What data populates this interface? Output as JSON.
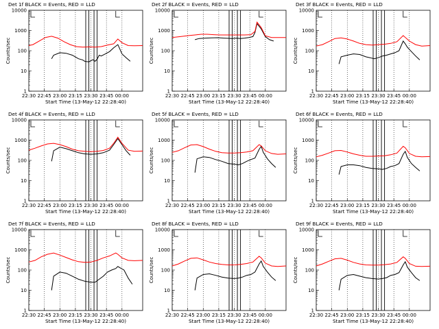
{
  "figure": {
    "time_axis": {
      "xlabel": "Start Time (13-May-12 22:28:40)",
      "x_ticks": [
        "22:30",
        "22:45",
        "23:00",
        "23:15",
        "23:30",
        "23:45",
        "00:00"
      ],
      "x_range_minutes_after_22:30": [
        0,
        110
      ]
    },
    "ylabel": "Counts/sec",
    "y_ticks": [
      "1",
      "10",
      "100",
      "1000",
      "10000"
    ],
    "y_scale": "log",
    "ylim": [
      1,
      10000
    ],
    "colors": {
      "events": "#000000",
      "lld": "#ff0000",
      "axes": "#000000",
      "background": "#ffffff"
    },
    "legend_note": "BLACK = Events, RED = LLD"
  },
  "chart_data": [
    {
      "type": "line",
      "title": "Det 1f BLACK = Events, RED = LLD",
      "xlabel": "Start Time (13-May-12 22:28:40)",
      "ylabel": "Counts/sec",
      "y_scale": "log",
      "ylim": [
        1,
        10000
      ],
      "series": [
        {
          "name": "Events",
          "color": "#000000",
          "x": [
            22,
            24,
            30,
            36,
            42,
            48,
            52,
            54,
            58,
            60,
            62,
            64,
            66,
            68,
            70,
            74,
            78,
            82,
            86,
            88,
            90,
            94,
            98
          ],
          "y": [
            40,
            60,
            80,
            75,
            60,
            40,
            35,
            30,
            28,
            32,
            36,
            30,
            38,
            60,
            55,
            70,
            90,
            140,
            200,
            120,
            70,
            45,
            30
          ]
        },
        {
          "name": "LLD",
          "color": "#ff0000",
          "x": [
            0,
            4,
            10,
            16,
            22,
            28,
            34,
            40,
            46,
            52,
            58,
            64,
            70,
            76,
            82,
            86,
            90,
            96,
            102,
            110
          ],
          "y": [
            180,
            200,
            300,
            450,
            520,
            420,
            280,
            200,
            160,
            150,
            155,
            150,
            160,
            190,
            220,
            380,
            250,
            180,
            175,
            180
          ]
        }
      ]
    },
    {
      "type": "line",
      "title": "Det 2f BLACK = Events, RED = LLD",
      "xlabel": "Start Time (13-May-12 22:28:40)",
      "ylabel": "Counts/sec",
      "y_scale": "log",
      "ylim": [
        1,
        10000
      ],
      "series": [
        {
          "name": "Events",
          "color": "#000000",
          "x": [
            22,
            26,
            32,
            38,
            44,
            50,
            54,
            58,
            62,
            66,
            70,
            74,
            78,
            80,
            82,
            86,
            90,
            94,
            98
          ],
          "y": [
            350,
            400,
            420,
            430,
            440,
            420,
            410,
            400,
            420,
            400,
            420,
            450,
            500,
            800,
            2200,
            1200,
            500,
            350,
            300
          ]
        },
        {
          "name": "LLD",
          "color": "#ff0000",
          "x": [
            0,
            8,
            16,
            22,
            28,
            34,
            40,
            46,
            52,
            58,
            64,
            70,
            76,
            80,
            82,
            86,
            90,
            96,
            102,
            110
          ],
          "y": [
            450,
            500,
            560,
            600,
            650,
            650,
            620,
            600,
            600,
            600,
            600,
            600,
            620,
            900,
            2600,
            1400,
            550,
            450,
            450,
            450
          ]
        }
      ]
    },
    {
      "type": "line",
      "title": "Det 3f BLACK = Events, RED = LLD",
      "xlabel": "Start Time (13-May-12 22:28:40)",
      "ylabel": "Counts/sec",
      "y_scale": "log",
      "ylim": [
        1,
        10000
      ],
      "series": [
        {
          "name": "Events",
          "color": "#000000",
          "x": [
            22,
            24,
            30,
            36,
            42,
            48,
            52,
            56,
            60,
            64,
            68,
            72,
            76,
            80,
            84,
            86,
            88,
            92,
            96,
            100
          ],
          "y": [
            22,
            50,
            60,
            70,
            65,
            50,
            45,
            40,
            45,
            55,
            60,
            70,
            80,
            100,
            300,
            220,
            150,
            90,
            55,
            35
          ]
        },
        {
          "name": "LLD",
          "color": "#ff0000",
          "x": [
            0,
            6,
            12,
            18,
            24,
            30,
            36,
            42,
            48,
            54,
            60,
            66,
            72,
            78,
            84,
            90,
            96,
            102,
            110
          ],
          "y": [
            170,
            200,
            280,
            400,
            430,
            380,
            300,
            230,
            200,
            190,
            200,
            210,
            230,
            280,
            560,
            300,
            200,
            170,
            180
          ]
        }
      ]
    },
    {
      "type": "line",
      "title": "Det 4f BLACK = Events, RED = LLD",
      "xlabel": "Start Time (13-May-12 22:28:40)",
      "ylabel": "Counts/sec",
      "y_scale": "log",
      "ylim": [
        1,
        10000
      ],
      "series": [
        {
          "name": "Events",
          "color": "#000000",
          "x": [
            22,
            24,
            30,
            36,
            42,
            48,
            54,
            60,
            66,
            72,
            78,
            82,
            86,
            90,
            94,
            98
          ],
          "y": [
            90,
            300,
            450,
            380,
            300,
            240,
            210,
            200,
            210,
            240,
            320,
            600,
            1200,
            600,
            300,
            180
          ]
        },
        {
          "name": "LLD",
          "color": "#ff0000",
          "x": [
            0,
            6,
            12,
            18,
            24,
            30,
            36,
            42,
            48,
            54,
            60,
            66,
            72,
            78,
            82,
            86,
            90,
            96,
            102,
            110
          ],
          "y": [
            320,
            400,
            520,
            650,
            700,
            600,
            480,
            360,
            300,
            280,
            270,
            280,
            310,
            400,
            700,
            1400,
            700,
            320,
            280,
            290
          ]
        }
      ]
    },
    {
      "type": "line",
      "title": "Det 5f BLACK = Events, RED = LLD",
      "xlabel": "Start Time (13-May-12 22:28:40)",
      "ylabel": "Counts/sec",
      "y_scale": "log",
      "ylim": [
        1,
        10000
      ],
      "series": [
        {
          "name": "Events",
          "color": "#000000",
          "x": [
            22,
            24,
            30,
            36,
            42,
            48,
            54,
            60,
            64,
            68,
            72,
            76,
            80,
            84,
            86,
            88,
            92,
            96,
            100
          ],
          "y": [
            25,
            120,
            150,
            140,
            110,
            90,
            70,
            65,
            60,
            70,
            90,
            110,
            130,
            350,
            500,
            250,
            120,
            70,
            45
          ]
        },
        {
          "name": "LLD",
          "color": "#ff0000",
          "x": [
            0,
            6,
            12,
            18,
            24,
            30,
            36,
            42,
            48,
            54,
            60,
            66,
            72,
            78,
            84,
            86,
            90,
            96,
            102,
            110
          ],
          "y": [
            250,
            300,
            420,
            580,
            600,
            480,
            360,
            280,
            240,
            230,
            230,
            240,
            260,
            300,
            600,
            520,
            300,
            220,
            200,
            210
          ]
        }
      ]
    },
    {
      "type": "line",
      "title": "Det 6f BLACK = Events, RED = LLD",
      "xlabel": "Start Time (13-May-12 22:28:40)",
      "ylabel": "Counts/sec",
      "y_scale": "log",
      "ylim": [
        1,
        10000
      ],
      "series": [
        {
          "name": "Events",
          "color": "#000000",
          "x": [
            22,
            24,
            30,
            36,
            42,
            48,
            54,
            60,
            64,
            68,
            72,
            76,
            80,
            84,
            86,
            88,
            92,
            96,
            100
          ],
          "y": [
            20,
            50,
            60,
            60,
            55,
            45,
            40,
            38,
            36,
            40,
            50,
            55,
            70,
            200,
            280,
            140,
            70,
            45,
            30
          ]
        },
        {
          "name": "LLD",
          "color": "#ff0000",
          "x": [
            0,
            6,
            12,
            18,
            24,
            30,
            36,
            42,
            48,
            54,
            60,
            66,
            72,
            78,
            84,
            86,
            90,
            96,
            102,
            110
          ],
          "y": [
            150,
            180,
            230,
            300,
            310,
            260,
            210,
            180,
            160,
            160,
            165,
            170,
            190,
            230,
            500,
            420,
            220,
            160,
            150,
            155
          ]
        }
      ]
    },
    {
      "type": "line",
      "title": "Det 7f BLACK = Events, RED = LLD",
      "xlabel": "Start Time (13-May-12 22:28:40)",
      "ylabel": "Counts/sec",
      "y_scale": "log",
      "ylim": [
        1,
        10000
      ],
      "series": [
        {
          "name": "Events",
          "color": "#000000",
          "x": [
            22,
            24,
            30,
            36,
            42,
            48,
            54,
            60,
            64,
            68,
            72,
            76,
            80,
            84,
            86,
            88,
            92,
            96,
            100
          ],
          "y": [
            10,
            50,
            80,
            70,
            50,
            35,
            28,
            25,
            25,
            35,
            50,
            80,
            100,
            120,
            150,
            130,
            100,
            40,
            20
          ]
        },
        {
          "name": "LLD",
          "color": "#ff0000",
          "x": [
            0,
            6,
            12,
            18,
            24,
            30,
            36,
            42,
            48,
            54,
            60,
            66,
            72,
            78,
            84,
            86,
            90,
            96,
            102,
            110
          ],
          "y": [
            250,
            300,
            450,
            600,
            700,
            550,
            420,
            320,
            260,
            240,
            250,
            300,
            400,
            500,
            700,
            600,
            400,
            300,
            290,
            300
          ]
        }
      ]
    },
    {
      "type": "line",
      "title": "Det 8f BLACK = Events, RED = LLD",
      "xlabel": "Start Time (13-May-12 22:28:40)",
      "ylabel": "Counts/sec",
      "y_scale": "log",
      "ylim": [
        1,
        10000
      ],
      "series": [
        {
          "name": "Events",
          "color": "#000000",
          "x": [
            22,
            24,
            30,
            36,
            42,
            48,
            54,
            60,
            64,
            68,
            72,
            76,
            80,
            84,
            86,
            88,
            92,
            96,
            100
          ],
          "y": [
            10,
            40,
            60,
            65,
            55,
            45,
            40,
            38,
            40,
            45,
            55,
            60,
            80,
            200,
            280,
            150,
            80,
            45,
            30
          ]
        },
        {
          "name": "LLD",
          "color": "#ff0000",
          "x": [
            0,
            6,
            12,
            18,
            24,
            30,
            36,
            42,
            48,
            54,
            60,
            66,
            72,
            78,
            84,
            86,
            90,
            96,
            102,
            110
          ],
          "y": [
            160,
            200,
            280,
            380,
            400,
            320,
            250,
            210,
            190,
            180,
            180,
            190,
            210,
            250,
            480,
            400,
            220,
            160,
            150,
            160
          ]
        }
      ]
    },
    {
      "type": "line",
      "title": "Det 9f BLACK = Events, RED = LLD",
      "xlabel": "Start Time (13-May-12 22:28:40)",
      "ylabel": "Counts/sec",
      "y_scale": "log",
      "ylim": [
        1,
        10000
      ],
      "series": [
        {
          "name": "Events",
          "color": "#000000",
          "x": [
            22,
            24,
            30,
            36,
            42,
            48,
            54,
            60,
            64,
            68,
            72,
            76,
            80,
            84,
            86,
            88,
            92,
            96,
            100
          ],
          "y": [
            10,
            35,
            55,
            60,
            50,
            42,
            38,
            36,
            38,
            42,
            55,
            60,
            75,
            180,
            260,
            140,
            75,
            42,
            30
          ]
        },
        {
          "name": "LLD",
          "color": "#ff0000",
          "x": [
            0,
            6,
            12,
            18,
            24,
            30,
            36,
            42,
            48,
            54,
            60,
            66,
            72,
            78,
            84,
            86,
            90,
            96,
            102,
            110
          ],
          "y": [
            160,
            200,
            270,
            360,
            380,
            310,
            240,
            200,
            180,
            175,
            175,
            185,
            200,
            240,
            450,
            380,
            210,
            155,
            150,
            155
          ]
        }
      ]
    }
  ]
}
